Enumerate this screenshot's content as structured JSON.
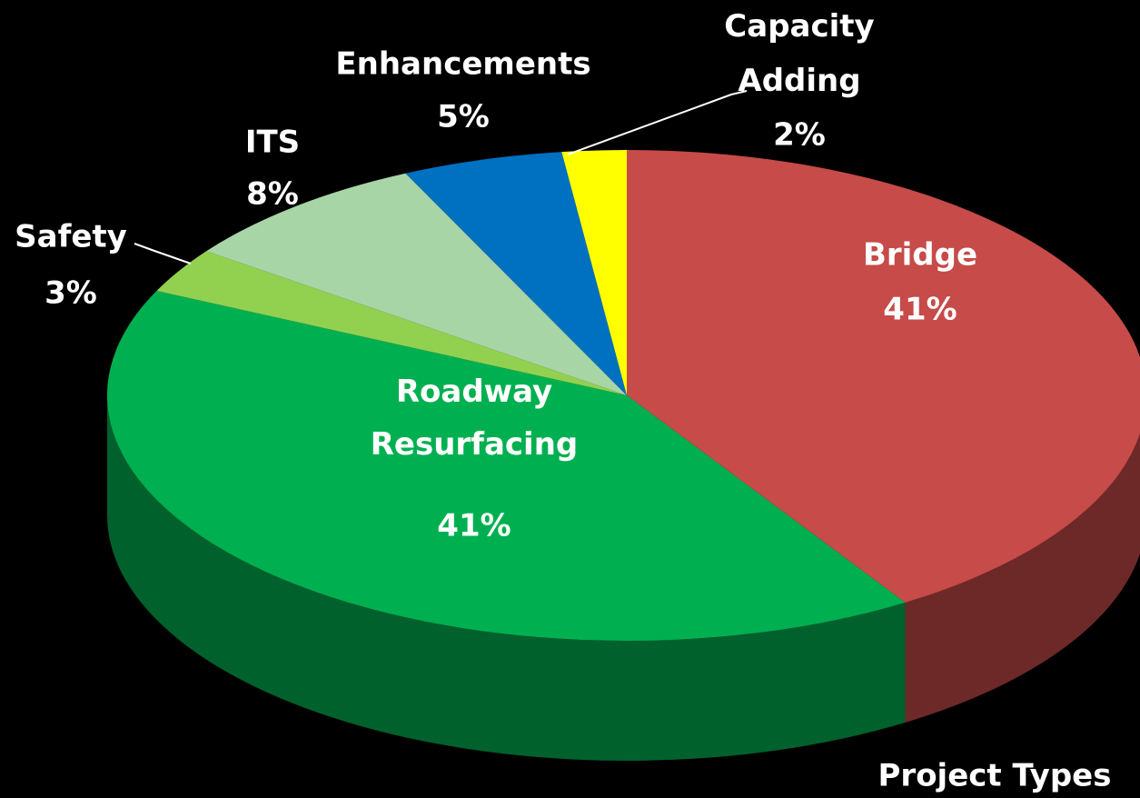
{
  "chart_data": {
    "type": "pie3d",
    "title": "Project Types",
    "categories": [
      "Bridge",
      "Roadway Resurfacing",
      "Safety",
      "ITS",
      "Enhancements",
      "Capacity Adding"
    ],
    "values": [
      41,
      41,
      3,
      8,
      5,
      2
    ],
    "value_labels": [
      "41%",
      "41%",
      "3%",
      "8%",
      "5%",
      "2%"
    ],
    "colors": [
      "#c64b49",
      "#00b050",
      "#92d050",
      "#a8d5a6",
      "#0070c0",
      "#ffff00"
    ]
  }
}
